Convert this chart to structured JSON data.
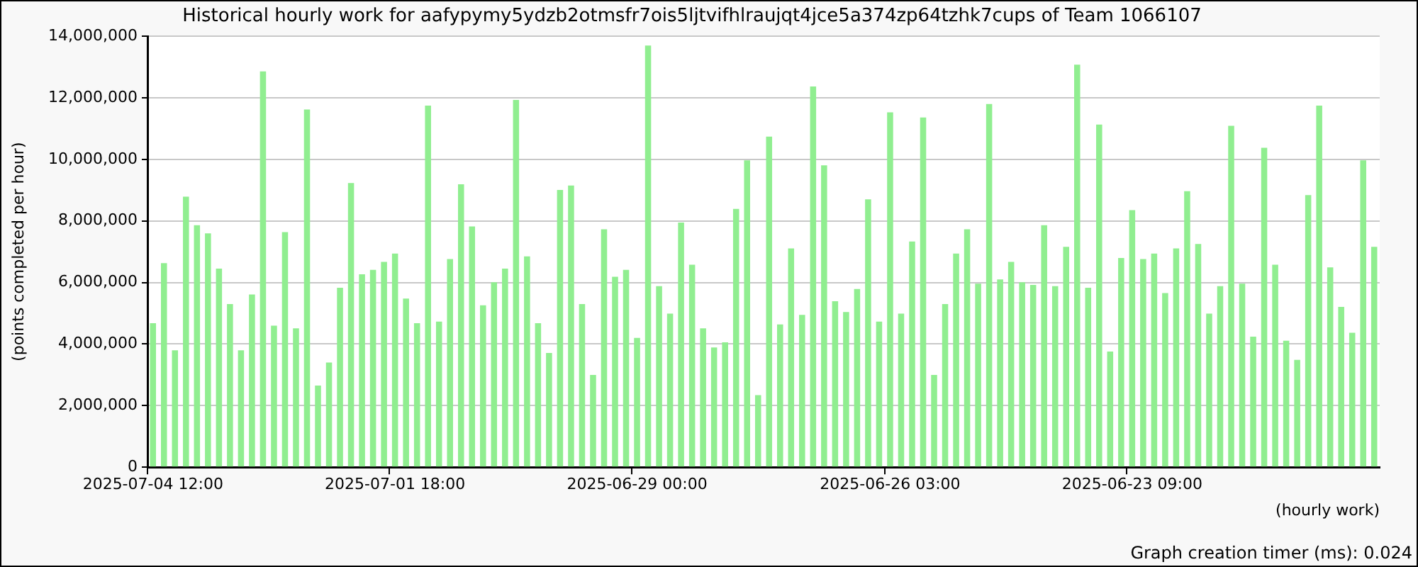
{
  "chart_data": {
    "type": "bar",
    "title": "Historical hourly work for aafypymy5ydzb2otmsfr7ois5ljtvifhlraujqt4jce5a374zp64tzhk7cups of Team 1066107",
    "ylabel": "(points completed per hour)",
    "xlabel": "(hourly work)",
    "annotations": [
      "Graph creation timer (ms): 0.024"
    ],
    "categories": [
      "2025-07-04 12:00",
      null,
      null,
      null,
      null,
      null,
      null,
      null,
      null,
      null,
      null,
      null,
      null,
      null,
      null,
      null,
      null,
      null,
      null,
      null,
      null,
      null,
      "2025-07-01 18:00",
      null,
      null,
      null,
      null,
      null,
      null,
      null,
      null,
      null,
      null,
      null,
      null,
      null,
      null,
      null,
      null,
      null,
      null,
      null,
      null,
      null,
      "2025-06-29 00:00",
      null,
      null,
      null,
      null,
      null,
      null,
      null,
      null,
      null,
      null,
      null,
      null,
      null,
      null,
      null,
      null,
      null,
      null,
      null,
      null,
      null,
      null,
      "2025-06-26 03:00",
      null,
      null,
      null,
      null,
      null,
      null,
      null,
      null,
      null,
      null,
      null,
      null,
      null,
      null,
      null,
      null,
      null,
      null,
      null,
      null,
      null,
      "2025-06-23 09:00",
      null,
      null,
      null,
      null,
      null,
      null,
      null,
      null,
      null,
      null,
      null,
      null,
      null,
      null,
      null,
      null,
      null,
      null,
      null,
      null,
      null,
      null
    ],
    "values": [
      4680000,
      6630000,
      3800000,
      8790000,
      7860000,
      7600000,
      6450000,
      5300000,
      3800000,
      5610000,
      12860000,
      4600000,
      7640000,
      4510000,
      11620000,
      2650000,
      3400000,
      5830000,
      9230000,
      6270000,
      6410000,
      6670000,
      6940000,
      5480000,
      4680000,
      11750000,
      4730000,
      6760000,
      9190000,
      7820000,
      5260000,
      6010000,
      6450000,
      11930000,
      6850000,
      4680000,
      3710000,
      9010000,
      9150000,
      5300000,
      3000000,
      7730000,
      6190000,
      6410000,
      4200000,
      13700000,
      5880000,
      4990000,
      7950000,
      6580000,
      4510000,
      3890000,
      4060000,
      8390000,
      9970000,
      2340000,
      10740000,
      4640000,
      7110000,
      4950000,
      12370000,
      9810000,
      5390000,
      5040000,
      5790000,
      8700000,
      4730000,
      11530000,
      4990000,
      7330000,
      11360000,
      3000000,
      5300000,
      6940000,
      7730000,
      5960000,
      11800000,
      6100000,
      6670000,
      6010000,
      5920000,
      7860000,
      5880000,
      7160000,
      13080000,
      5830000,
      11130000,
      3760000,
      6800000,
      8350000,
      6760000,
      6940000,
      5660000,
      7110000,
      8970000,
      7250000,
      4990000,
      5880000,
      11090000,
      5960000,
      4240000,
      10380000,
      6580000,
      4110000,
      3490000,
      8840000,
      11750000,
      6490000,
      5210000,
      4370000,
      9970000,
      7160000
    ],
    "color": "#90ee90",
    "ylim": [
      0,
      14000000
    ],
    "yticks": [
      0,
      {
        "value": 2000000,
        "label": "2,000,000"
      },
      {
        "value": 4000000,
        "label": "4,000,000"
      },
      {
        "value": 6000000,
        "label": "6,000,000"
      },
      {
        "value": 8000000,
        "label": "8,000,000"
      },
      {
        "value": 10000000,
        "label": "10,000,000"
      },
      {
        "value": 12000000,
        "label": "12,000,000"
      },
      {
        "value": 14000000,
        "label": "14,000,000"
      }
    ],
    "grid": "y",
    "legend": false
  }
}
